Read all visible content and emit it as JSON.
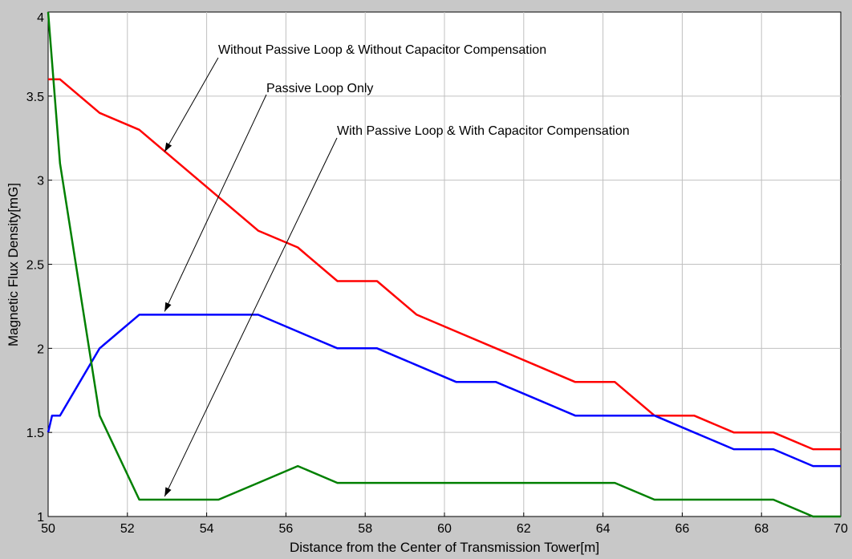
{
  "chart_data": {
    "type": "line",
    "title": "",
    "xlabel": "Distance from the Center of Transmission Tower[m]",
    "ylabel": "Magnetic Flux Density[mG]",
    "xlim": [
      50,
      70
    ],
    "ylim": [
      1,
      4
    ],
    "grid": true,
    "xticks": [
      50,
      52,
      54,
      56,
      58,
      60,
      62,
      64,
      66,
      68,
      70
    ],
    "yticks": [
      1,
      1.5,
      2,
      2.5,
      3,
      3.5,
      4
    ],
    "xtick_labels": [
      "50",
      "52",
      "54",
      "56",
      "58",
      "60",
      "62",
      "64",
      "66",
      "68",
      "70"
    ],
    "ytick_labels": [
      "1",
      "1.5",
      "2",
      "2.5",
      "3",
      "3.5",
      "4"
    ],
    "series": [
      {
        "color": "#ff0000",
        "x": [
          50,
          50.3,
          51.3,
          52.3,
          55.3,
          56.3,
          57.3,
          58.3,
          59.3,
          60.3,
          61.3,
          62.3,
          63.3,
          64.3,
          65.3,
          66.3,
          67.3,
          68.3,
          69.3,
          70
        ],
        "y": [
          3.6,
          3.6,
          3.4,
          3.3,
          2.7,
          2.6,
          2.4,
          2.4,
          2.2,
          2.1,
          2.0,
          1.9,
          1.8,
          1.8,
          1.6,
          1.6,
          1.5,
          1.5,
          1.4,
          1.4
        ]
      },
      {
        "color": "#0000ff",
        "x": [
          50,
          50.1,
          50.3,
          51.3,
          52.3,
          53.3,
          54.3,
          55.3,
          56.3,
          57.3,
          58.3,
          59.3,
          60.3,
          61.3,
          62.3,
          63.3,
          64.3,
          65.3,
          66.3,
          67.3,
          68.3,
          69.3,
          70
        ],
        "y": [
          1.5,
          1.6,
          1.6,
          2.0,
          2.2,
          2.2,
          2.2,
          2.2,
          2.1,
          2.0,
          2.0,
          1.9,
          1.8,
          1.8,
          1.7,
          1.6,
          1.6,
          1.6,
          1.5,
          1.4,
          1.4,
          1.3,
          1.3
        ]
      },
      {
        "color": "#008000",
        "x": [
          50,
          50.3,
          51.3,
          52.3,
          53.3,
          54.3,
          55.3,
          56.3,
          57.3,
          58.3,
          59.3,
          60.3,
          61.3,
          62.3,
          63.3,
          64.3,
          65.3,
          66.3,
          67.3,
          68.3,
          69.3,
          70
        ],
        "y": [
          4.0,
          3.1,
          1.6,
          1.1,
          1.1,
          1.1,
          1.2,
          1.3,
          1.2,
          1.2,
          1.2,
          1.2,
          1.2,
          1.2,
          1.2,
          1.2,
          1.1,
          1.1,
          1.1,
          1.1,
          1.0,
          1.0
        ]
      }
    ],
    "annotations": [
      {
        "text": "Without Passive Loop & Without Capacitor Compensation",
        "arrow_to": [
          53.0,
          3.15
        ]
      },
      {
        "text": "Passive Loop Only",
        "arrow_to": [
          53.0,
          2.2
        ]
      },
      {
        "text": "With Passive Loop & With Capacitor Compensation",
        "arrow_to": [
          53.0,
          1.1
        ]
      }
    ]
  }
}
